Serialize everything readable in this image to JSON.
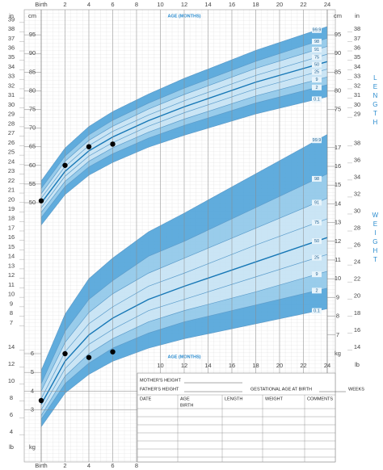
{
  "chart_data": [
    {
      "type": "line",
      "axis_title": "LENGTH",
      "y_unit": "cm",
      "y_in_unit": "in",
      "x_title": "AGE (MONTHS)",
      "grid": true,
      "x": [
        0,
        2,
        4,
        6,
        9,
        12,
        18,
        24
      ],
      "xlim": [
        0,
        24
      ],
      "xticks": [
        {
          "value": 0,
          "label": "Birth"
        },
        2,
        4,
        6,
        8,
        10,
        12,
        14,
        16,
        18,
        20,
        22,
        24
      ],
      "ylim": [
        44,
        99
      ],
      "yticks": [
        50,
        55,
        60,
        65,
        70,
        75,
        80,
        85,
        90,
        95
      ],
      "y2ticks": [
        75,
        80,
        85,
        90,
        95
      ],
      "y_in_ticks": [
        7,
        8,
        9,
        10,
        11,
        12,
        13,
        14,
        15,
        16,
        17,
        18,
        19,
        20,
        21,
        22,
        23,
        24,
        25,
        26,
        27,
        28,
        29,
        30,
        31,
        32,
        33,
        34,
        35,
        36,
        37,
        38,
        39
      ],
      "y2_in_ticks": [
        29,
        30,
        31,
        32,
        33,
        34,
        35,
        36,
        37,
        38
      ],
      "band_colors": [
        "#4fa3d9",
        "#8ec6e9",
        "#c4e2f4",
        "#c4e2f4",
        "#c4e2f4",
        "#c4e2f4",
        "#8ec6e9",
        "#4fa3d9"
      ],
      "series": [
        {
          "name": "0.1",
          "color": "#5b9ccb",
          "values": [
            44.0,
            52.2,
            57.4,
            60.8,
            64.9,
            68.1,
            73.8,
            78.4
          ]
        },
        {
          "name": "2",
          "color": "#5b9ccb",
          "values": [
            46.0,
            54.3,
            59.6,
            63.1,
            67.3,
            70.7,
            76.7,
            81.6
          ]
        },
        {
          "name": "9",
          "color": "#5b9ccb",
          "values": [
            47.4,
            55.7,
            61.1,
            64.7,
            68.9,
            72.4,
            78.6,
            83.7
          ]
        },
        {
          "name": "25",
          "color": "#5b9ccb",
          "values": [
            48.6,
            57.1,
            62.5,
            66.1,
            70.5,
            74.1,
            80.5,
            85.8
          ]
        },
        {
          "name": "50",
          "color": "#1677b6",
          "values": [
            49.9,
            58.4,
            63.9,
            67.6,
            72.0,
            75.7,
            82.3,
            87.8
          ]
        },
        {
          "name": "75",
          "color": "#5b9ccb",
          "values": [
            51.2,
            59.7,
            65.3,
            69.1,
            73.5,
            77.3,
            84.1,
            89.8
          ]
        },
        {
          "name": "91",
          "color": "#5b9ccb",
          "values": [
            52.4,
            61.1,
            66.7,
            70.5,
            75.1,
            79.0,
            86.0,
            91.9
          ]
        },
        {
          "name": "98",
          "color": "#5b9ccb",
          "values": [
            53.8,
            62.5,
            68.2,
            72.1,
            76.7,
            80.7,
            87.9,
            94.1
          ]
        },
        {
          "name": "99.9",
          "color": "#5b9ccb",
          "values": [
            55.8,
            64.6,
            70.4,
            74.4,
            79.1,
            83.3,
            90.8,
            97.2
          ]
        }
      ],
      "measurements": {
        "color": "#000000",
        "x": [
          0,
          2,
          4,
          6
        ],
        "values": [
          50.5,
          60,
          65,
          65.7
        ]
      }
    },
    {
      "type": "line",
      "axis_title": "WEIGHT",
      "y_unit": "kg",
      "y_lb_unit": "lb",
      "x_title": "AGE (MONTHS)",
      "grid": true,
      "x": [
        0,
        2,
        4,
        6,
        9,
        12,
        18,
        24
      ],
      "xlim": [
        0,
        24
      ],
      "xticks": [
        {
          "value": 0,
          "label": "Birth"
        },
        2,
        4,
        6,
        8,
        10,
        12,
        14,
        16,
        18,
        20,
        22,
        24
      ],
      "ylim": [
        2,
        17
      ],
      "yticks": [
        3,
        4,
        5,
        6
      ],
      "y2ticks": [
        7,
        8,
        9,
        10,
        11,
        12,
        13,
        14,
        15,
        16,
        17
      ],
      "y_lb_ticks": [
        4,
        6,
        8,
        10,
        12,
        14
      ],
      "y2_lb_ticks": [
        14,
        16,
        18,
        20,
        22,
        24,
        26,
        28,
        30,
        32,
        34,
        36,
        38
      ],
      "band_colors": [
        "#4fa3d9",
        "#8ec6e9",
        "#c4e2f4",
        "#c4e2f4",
        "#c4e2f4",
        "#c4e2f4",
        "#8ec6e9",
        "#4fa3d9"
      ],
      "series": [
        {
          "name": "0.1",
          "color": "#5b9ccb",
          "values": [
            2.1,
            3.9,
            4.9,
            5.6,
            6.3,
            6.8,
            7.6,
            8.4
          ]
        },
        {
          "name": "2",
          "color": "#5b9ccb",
          "values": [
            2.5,
            4.4,
            5.5,
            6.3,
            7.1,
            7.7,
            8.6,
            9.5
          ]
        },
        {
          "name": "9",
          "color": "#5b9ccb",
          "values": [
            2.7,
            4.8,
            6.0,
            6.8,
            7.7,
            8.3,
            9.3,
            10.4
          ]
        },
        {
          "name": "25",
          "color": "#5b9ccb",
          "values": [
            3.0,
            5.2,
            6.5,
            7.3,
            8.3,
            8.9,
            10.1,
            11.3
          ]
        },
        {
          "name": "50",
          "color": "#1677b6",
          "values": [
            3.3,
            5.6,
            7.0,
            7.9,
            8.9,
            9.6,
            10.9,
            12.2
          ]
        },
        {
          "name": "75",
          "color": "#5b9ccb",
          "values": [
            3.6,
            6.1,
            7.6,
            8.5,
            9.6,
            10.3,
            11.8,
            13.2
          ]
        },
        {
          "name": "91",
          "color": "#5b9ccb",
          "values": [
            4.0,
            6.6,
            8.2,
            9.2,
            10.3,
            11.1,
            12.7,
            14.3
          ]
        },
        {
          "name": "98",
          "color": "#5b9ccb",
          "values": [
            4.4,
            7.2,
            8.9,
            9.9,
            11.2,
            12.0,
            13.8,
            15.6
          ]
        },
        {
          "name": "99.9",
          "color": "#5b9ccb",
          "values": [
            5.1,
            8.1,
            10.0,
            11.1,
            12.5,
            13.5,
            15.6,
            17.7
          ]
        }
      ],
      "measurements": {
        "color": "#000000",
        "x": [
          0,
          2,
          4,
          6
        ],
        "values": [
          3.5,
          6.0,
          5.8,
          6.1
        ]
      }
    }
  ],
  "form": {
    "mothers_height": "MOTHER'S HEIGHT",
    "fathers_height": "FATHER'S HEIGHT",
    "gestational_age": "GESTATIONAL AGE AT BIRTH",
    "weeks": "WEEKS",
    "columns": [
      "DATE",
      "AGE",
      "LENGTH",
      "WEIGHT",
      "COMMENTS"
    ],
    "age_sub": "BIRTH"
  }
}
